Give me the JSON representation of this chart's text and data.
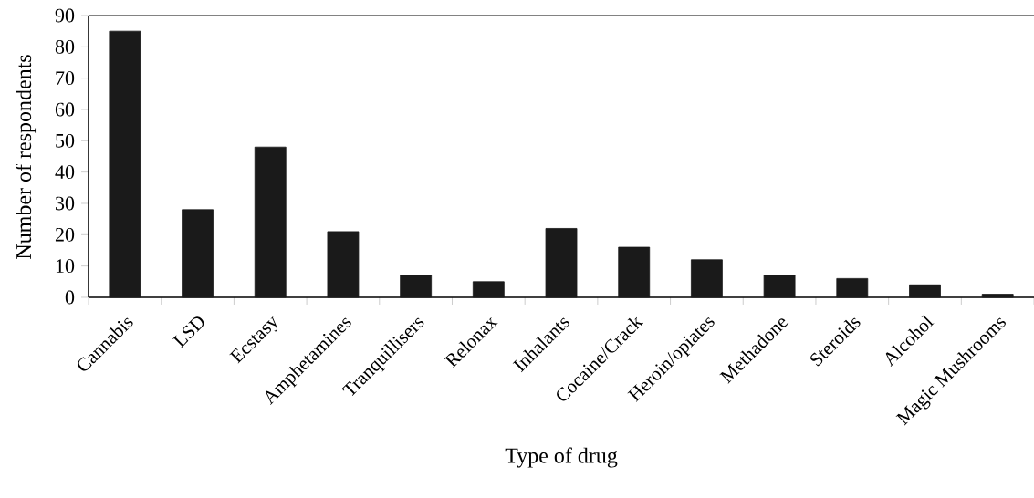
{
  "chart_data": {
    "type": "bar",
    "xlabel": "Type of drug",
    "ylabel": "Number of respondents",
    "categories": [
      "Cannabis",
      "LSD",
      "Ecstasy",
      "Amphetamines",
      "Tranquillisers",
      "Relonax",
      "Inhalants",
      "Cocaine/Crack",
      "Heroin/opiates",
      "Methadone",
      "Steroids",
      "Alcohol",
      "Magic Mushrooms"
    ],
    "values": [
      85,
      28,
      48,
      21,
      7,
      5,
      22,
      16,
      12,
      7,
      6,
      4,
      1
    ],
    "color": "#1a1a1a",
    "ylim": [
      0,
      90
    ],
    "yticks": [
      0,
      10,
      20,
      30,
      40,
      50,
      60,
      70,
      80,
      90
    ],
    "grid": false
  }
}
